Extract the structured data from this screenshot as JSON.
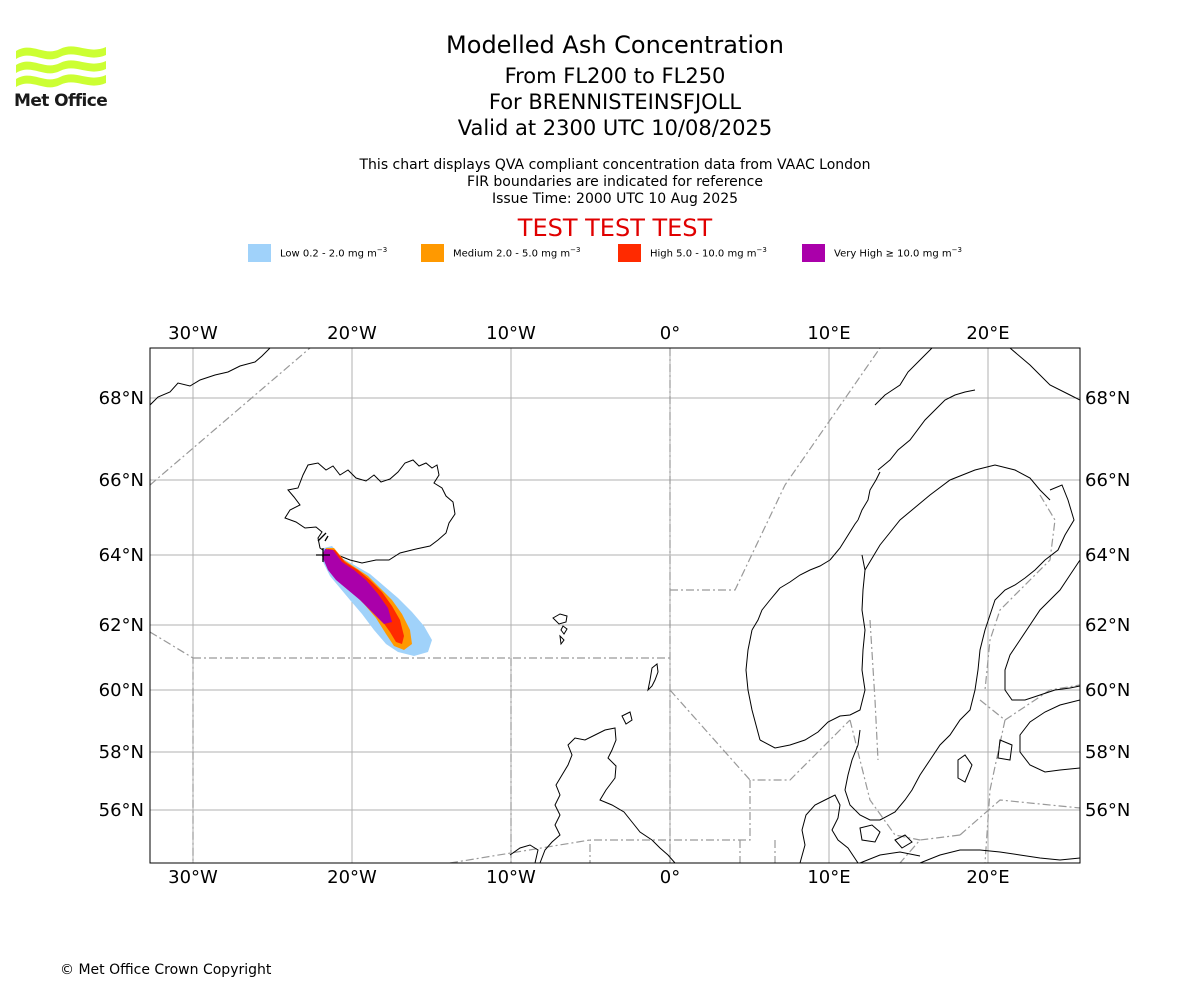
{
  "logo": {
    "text": "Met Office",
    "color": "#ccff33"
  },
  "title": {
    "main": "Modelled Ash Concentration",
    "levels": "From FL200 to FL250",
    "volcano": "For BRENNISTEINSFJOLL",
    "valid": "Valid at 2300 UTC 10/08/2025",
    "description": "This chart displays QVA compliant concentration data from VAAC London",
    "fir_note": "FIR boundaries are indicated for reference",
    "issue_time": "Issue Time: 2000 UTC 10 Aug 2025",
    "test_banner": "TEST TEST TEST"
  },
  "legend": [
    {
      "label": "Low 0.2 - 2.0 mg m",
      "unit_exp": "−3",
      "color": "#a0d2fa"
    },
    {
      "label": "Medium 2.0 - 5.0 mg m",
      "unit_exp": "−3",
      "color": "#ff9900"
    },
    {
      "label": "High 5.0 - 10.0 mg m",
      "unit_exp": "−3",
      "color": "#ff2a00"
    },
    {
      "label": "Very High  ≥  10.0 mg m",
      "unit_exp": "−3",
      "color": "#aa00aa"
    }
  ],
  "map": {
    "lon_labels": [
      "30°W",
      "20°W",
      "10°W",
      "0°",
      "10°E",
      "20°E"
    ],
    "lat_labels": [
      "68°N",
      "66°N",
      "64°N",
      "62°N",
      "60°N",
      "58°N",
      "56°N"
    ],
    "gridline_color": "#b0b0b0",
    "fir_line_color": "#999999"
  },
  "copyright": "© Met Office Crown Copyright"
}
